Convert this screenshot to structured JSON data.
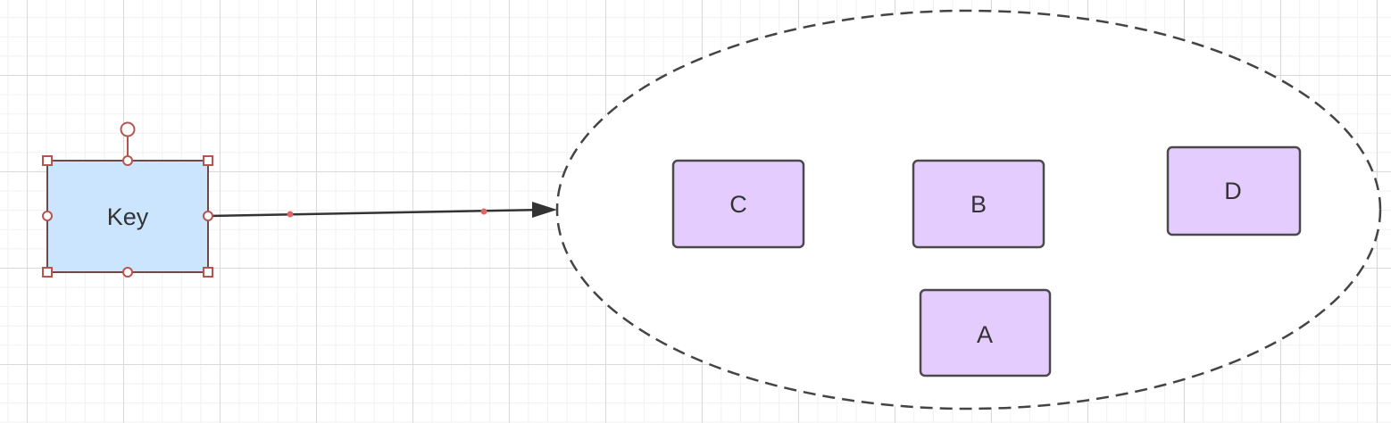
{
  "diagram": {
    "colors": {
      "selected_fill": "#cce5ff",
      "selected_stroke": "#6b4a4a",
      "member_fill": "#e5ccff",
      "member_stroke": "#4a4a4a",
      "set_stroke": "#444444",
      "edge_stroke": "#333333",
      "handle_stroke": "#b85450"
    },
    "key_node": {
      "label": "Key",
      "selected": true
    },
    "set": {
      "shape": "ellipse",
      "border": "dashed",
      "members": [
        {
          "id": "C",
          "label": "C"
        },
        {
          "id": "B",
          "label": "B"
        },
        {
          "id": "D",
          "label": "D"
        },
        {
          "id": "A",
          "label": "A"
        }
      ]
    },
    "edges": [
      {
        "from": "Key",
        "to": "set",
        "arrow": "end"
      }
    ]
  }
}
